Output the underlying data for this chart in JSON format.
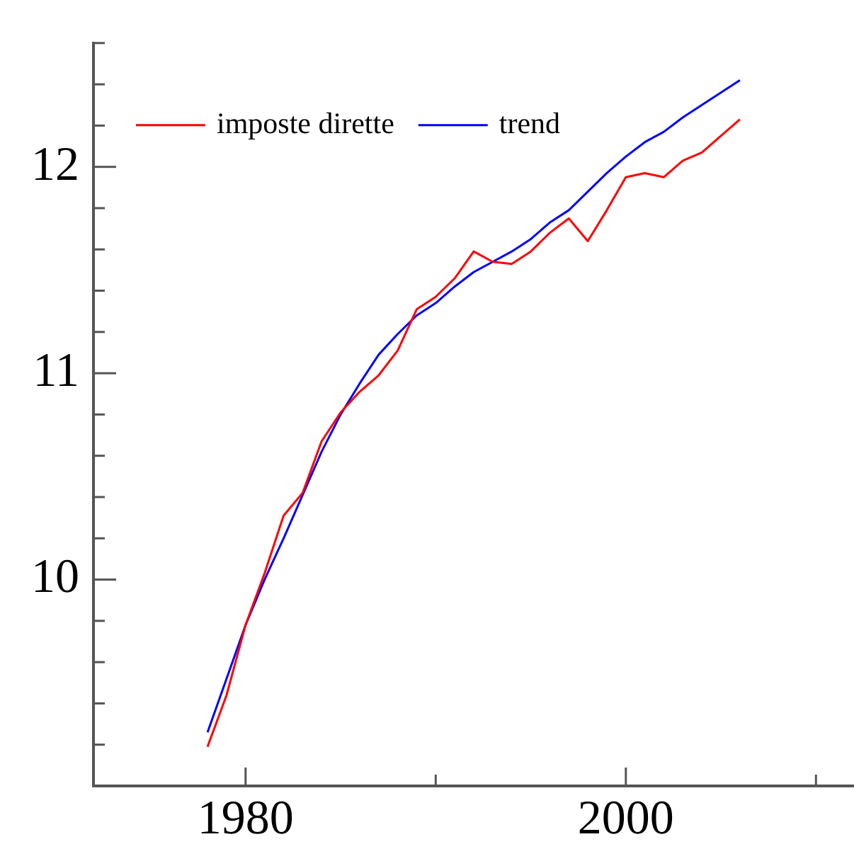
{
  "chart_data": {
    "type": "line",
    "x": [
      1978,
      1979,
      1980,
      1981,
      1982,
      1983,
      1984,
      1985,
      1986,
      1987,
      1988,
      1989,
      1990,
      1991,
      1992,
      1993,
      1994,
      1995,
      1996,
      1997,
      1998,
      1999,
      2000,
      2001,
      2002,
      2003,
      2004,
      2005,
      2006
    ],
    "series": [
      {
        "name": "imposte dirette",
        "color": "#ff0000",
        "values": [
          9.19,
          9.44,
          9.78,
          10.03,
          10.31,
          10.42,
          10.67,
          10.81,
          10.91,
          10.99,
          11.11,
          11.31,
          11.37,
          11.46,
          11.59,
          11.54,
          11.53,
          11.59,
          11.68,
          11.75,
          11.64,
          11.79,
          11.95,
          11.97,
          11.95,
          12.03,
          12.07,
          12.15,
          12.23
        ]
      },
      {
        "name": "trend",
        "color": "#0000ff",
        "values": [
          9.26,
          9.52,
          9.78,
          10.0,
          10.2,
          10.41,
          10.62,
          10.8,
          10.95,
          11.09,
          11.19,
          11.28,
          11.34,
          11.42,
          11.49,
          11.54,
          11.59,
          11.65,
          11.73,
          11.79,
          11.88,
          11.97,
          12.05,
          12.12,
          12.17,
          12.24,
          12.3,
          12.36,
          12.42
        ]
      }
    ],
    "xlim": [
      1972,
      2012
    ],
    "xticks": [
      1980,
      {
        "value": 1990,
        "label": null
      },
      2000,
      {
        "value": 2010,
        "label": null
      }
    ],
    "ylim": [
      9,
      12.6
    ],
    "yticks": [
      {
        "value": 9.2,
        "label": null
      },
      {
        "value": 9.4,
        "label": null
      },
      {
        "value": 9.6,
        "label": null
      },
      {
        "value": 9.8,
        "label": null
      },
      10,
      {
        "value": 10.2,
        "label": null
      },
      {
        "value": 10.4,
        "label": null
      },
      {
        "value": 10.6,
        "label": null
      },
      {
        "value": 10.8,
        "label": null
      },
      11,
      {
        "value": 11.2,
        "label": null
      },
      {
        "value": 11.4,
        "label": null
      },
      {
        "value": 11.6,
        "label": null
      },
      {
        "value": 11.8,
        "label": null
      },
      12,
      {
        "value": 12.2,
        "label": null
      },
      {
        "value": 12.4,
        "label": null
      },
      {
        "value": 12.6,
        "label": null
      }
    ],
    "legend": "top left",
    "marker": "none",
    "line_style": "solid",
    "grid": false
  }
}
